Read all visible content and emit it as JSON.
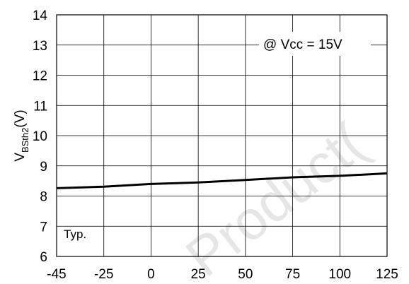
{
  "chart_data": {
    "type": "line",
    "x": [
      -45,
      -25,
      0,
      25,
      50,
      75,
      100,
      125
    ],
    "series": [
      {
        "values": [
          8.26,
          8.31,
          8.4,
          8.45,
          8.53,
          8.62,
          8.67,
          8.75
        ]
      }
    ],
    "xticks": [
      "-45",
      "-25",
      "0",
      "25",
      "50",
      "75",
      "100",
      "125"
    ],
    "yticks": [
      "6",
      "7",
      "8",
      "9",
      "10",
      "11",
      "12",
      "13",
      "14"
    ],
    "xlim": [
      -45,
      125
    ],
    "ylim": [
      6,
      14
    ],
    "ylabel_main": "V",
    "ylabel_sub": "BSth2",
    "ylabel_unit": "(V)",
    "annotation": "@ Vcc = 15V",
    "inner_label": "Typ.",
    "watermark": "Product(",
    "grid": true,
    "line_color": "#000000"
  }
}
